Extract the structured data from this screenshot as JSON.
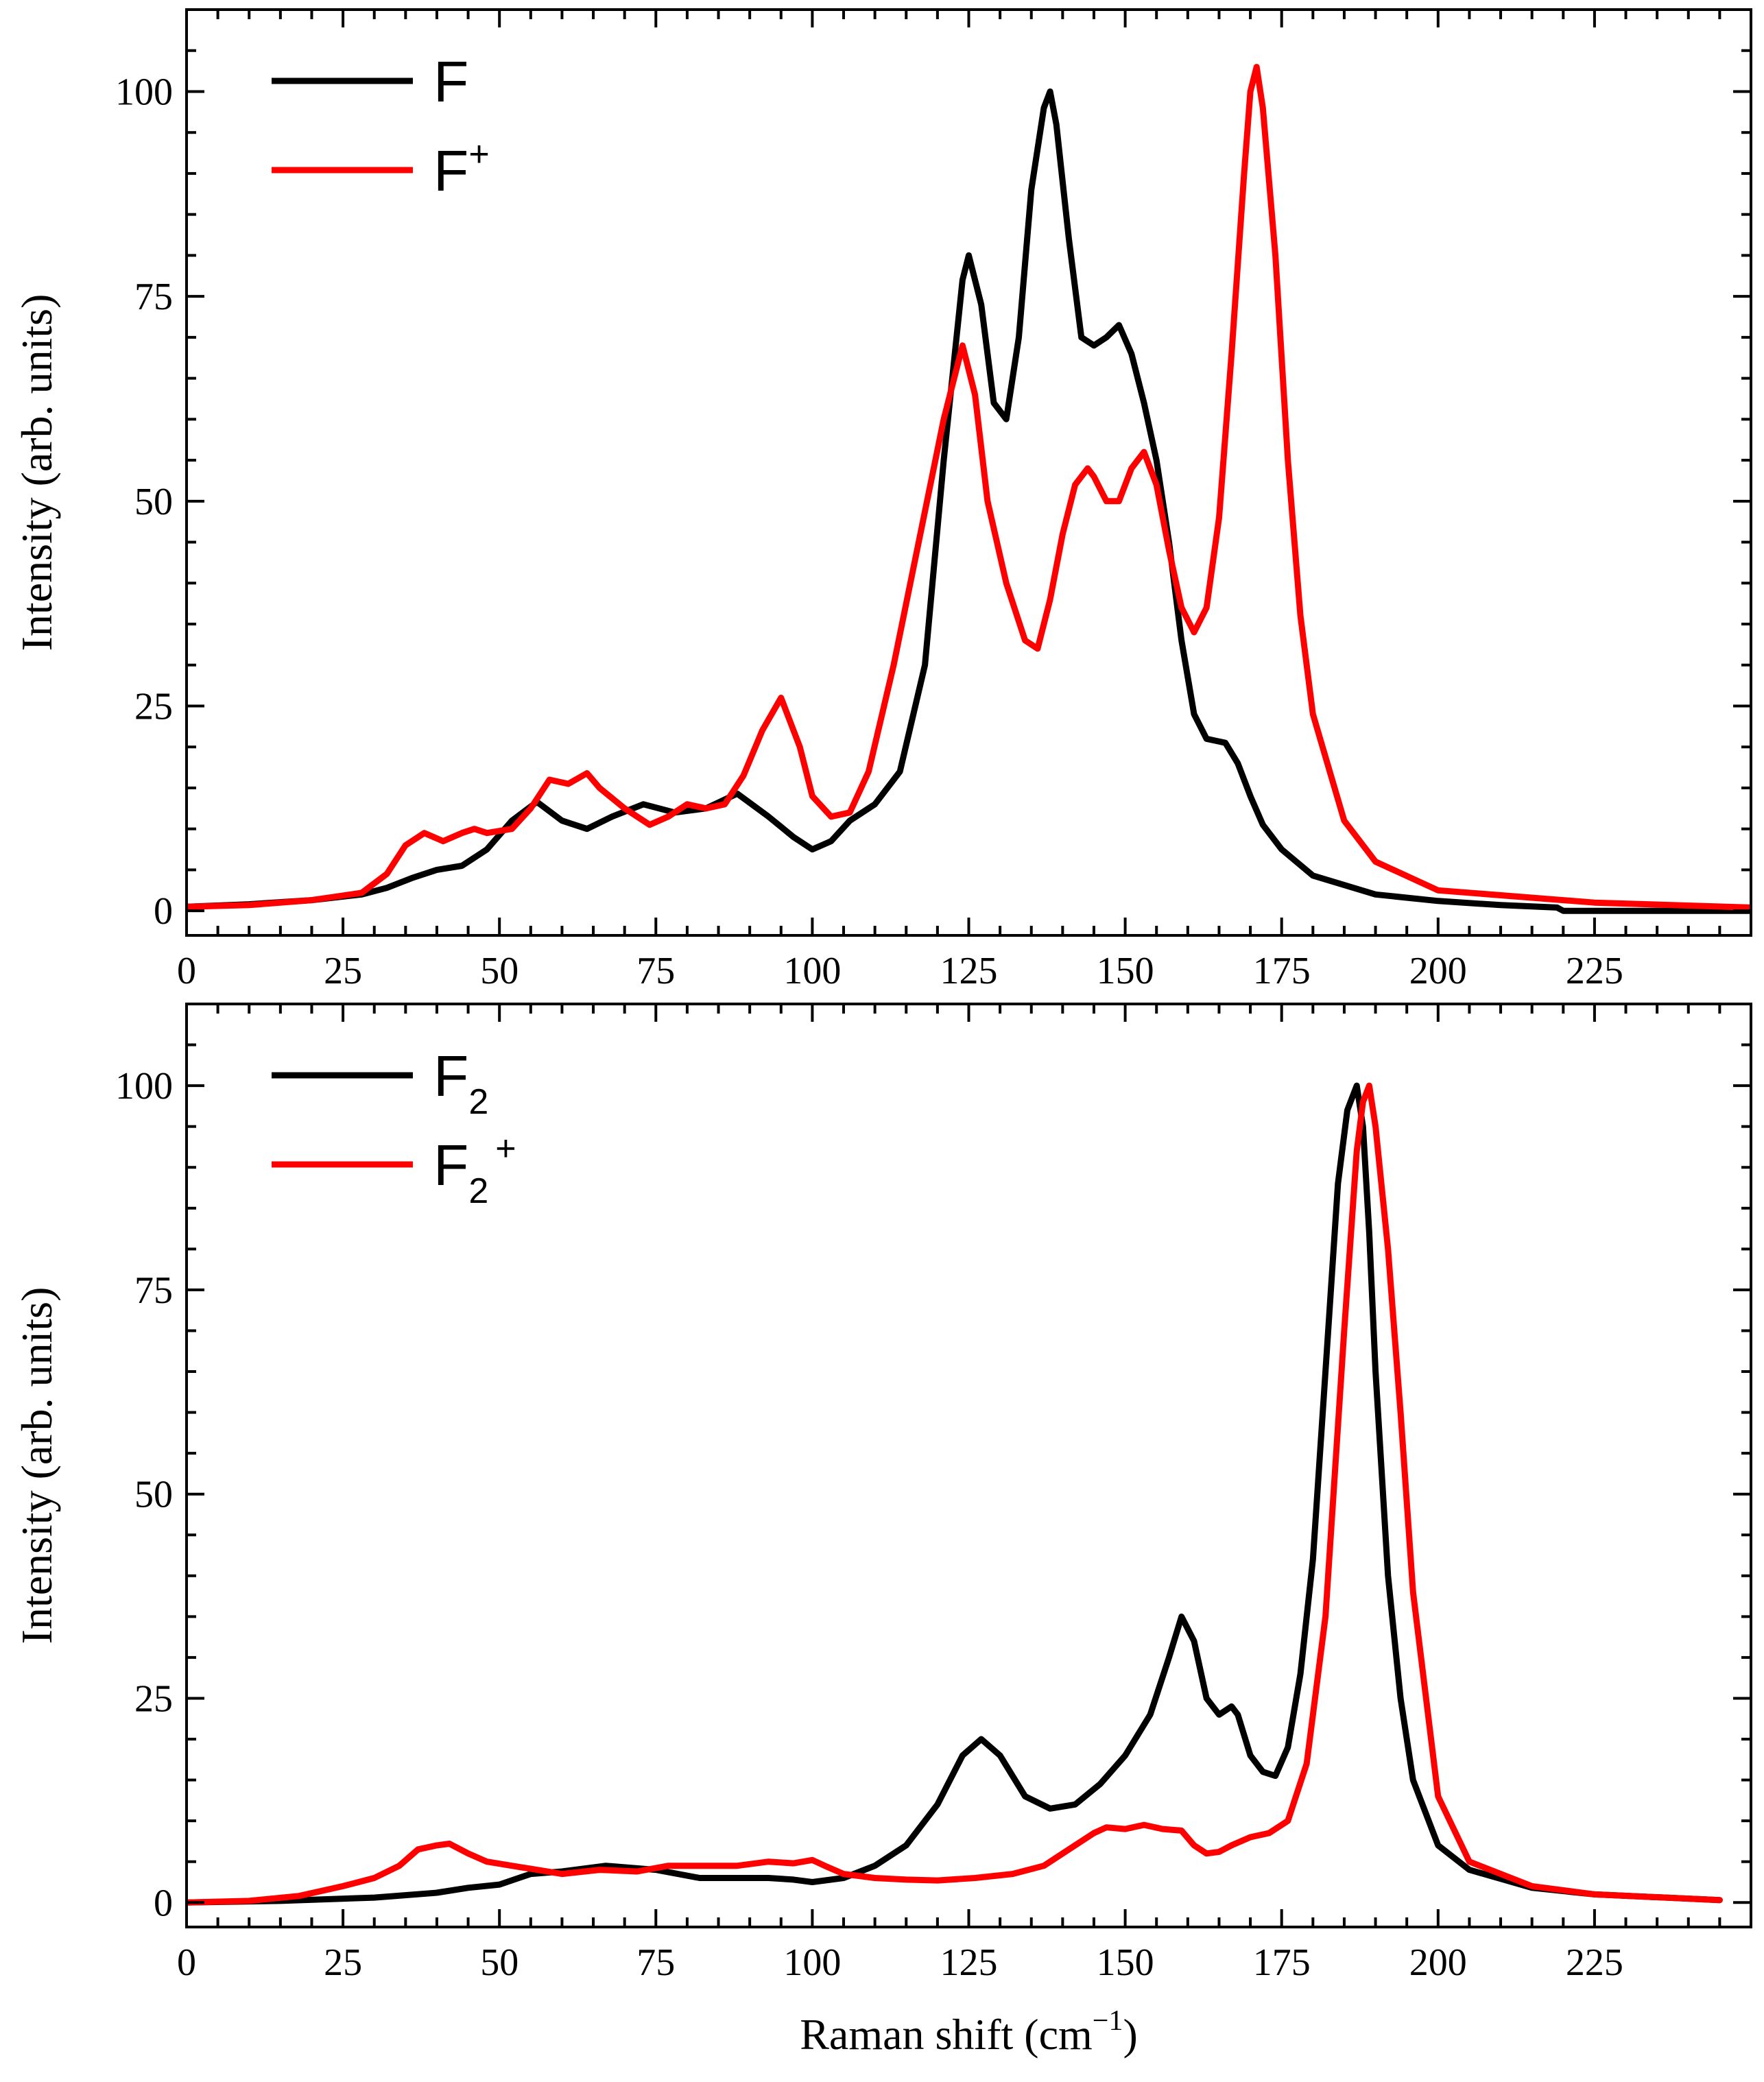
{
  "chart_data": [
    {
      "type": "line",
      "panel": "top",
      "title": "",
      "xlabel": "",
      "ylabel": "Intensity (arb. units)",
      "xlim": [
        0,
        250
      ],
      "ylim": [
        -3,
        110
      ],
      "xticks": [
        0,
        25,
        50,
        75,
        100,
        125,
        150,
        175,
        200,
        225
      ],
      "xtick_labels": [
        "0",
        "25",
        "50",
        "75",
        "100",
        "125",
        "150",
        "175",
        "200",
        "225"
      ],
      "yticks": [
        0,
        25,
        50,
        75,
        100
      ],
      "ytick_labels": [
        "0",
        "25",
        "50",
        "75",
        "100"
      ],
      "grid": false,
      "legend_position": "top-left",
      "series": [
        {
          "name": "F",
          "legend_main": "F",
          "legend_sub": "",
          "legend_sup": "",
          "color": "#000000",
          "x": [
            0,
            10,
            20,
            28,
            32,
            36,
            40,
            44,
            48,
            52,
            56,
            60,
            64,
            68,
            73,
            78,
            83,
            88,
            93,
            97,
            100,
            103,
            106,
            110,
            114,
            118,
            121,
            124,
            125,
            127,
            129,
            131,
            133,
            135,
            137,
            138,
            139,
            141,
            143,
            145,
            147,
            149,
            151,
            153,
            155,
            157,
            159,
            161,
            163,
            166,
            168,
            170,
            172,
            175,
            180,
            190,
            200,
            210,
            219,
            220,
            230,
            250
          ],
          "y": [
            0.5,
            0.8,
            1.3,
            2.0,
            2.8,
            4.0,
            5.0,
            5.5,
            7.5,
            11.0,
            13.3,
            11.0,
            10.0,
            11.5,
            13.0,
            12.0,
            12.5,
            14.3,
            11.5,
            9.0,
            7.5,
            8.5,
            11.0,
            13.0,
            17.0,
            30.0,
            55.0,
            77.0,
            80.0,
            74.0,
            62.0,
            60.0,
            70.0,
            88.0,
            98.0,
            100.0,
            96.0,
            82.0,
            70.0,
            69.0,
            70.0,
            71.5,
            68.0,
            62.0,
            55.0,
            45.0,
            33.0,
            24.0,
            21.0,
            20.5,
            18.0,
            14.0,
            10.5,
            7.5,
            4.3,
            2.0,
            1.2,
            0.7,
            0.4,
            0.0,
            0.0,
            0.0
          ]
        },
        {
          "name": "F+",
          "legend_main": "F",
          "legend_sub": "",
          "legend_sup": "+",
          "color": "#ff0000",
          "x": [
            0,
            10,
            20,
            28,
            32,
            35,
            38,
            41,
            44,
            46,
            48,
            52,
            55,
            58,
            61,
            64,
            66,
            70,
            74,
            77,
            80,
            83,
            86,
            89,
            92,
            95,
            98,
            100,
            103,
            106,
            109,
            113,
            117,
            121,
            124,
            126,
            128,
            131,
            134,
            136,
            138,
            140,
            142,
            144,
            145,
            147,
            149,
            151,
            153,
            155,
            157,
            159,
            161,
            163,
            165,
            167,
            169,
            170,
            171,
            172,
            174,
            176,
            178,
            180,
            185,
            190,
            200,
            225,
            250
          ],
          "y": [
            0.5,
            0.7,
            1.3,
            2.2,
            4.5,
            8.0,
            9.5,
            8.5,
            9.5,
            10.0,
            9.5,
            10.0,
            12.5,
            16.0,
            15.5,
            16.8,
            15.0,
            12.5,
            10.5,
            11.5,
            13.0,
            12.5,
            13.0,
            16.5,
            22.0,
            26.0,
            20.0,
            14.0,
            11.5,
            12.0,
            17.0,
            30.0,
            45.0,
            60.0,
            69.0,
            63.0,
            50.0,
            40.0,
            33.0,
            32.0,
            38.0,
            46.0,
            52.0,
            54.0,
            53.0,
            50.0,
            50.0,
            54.0,
            56.0,
            52.0,
            44.0,
            37.0,
            34.0,
            37.0,
            48.0,
            68.0,
            90.0,
            100.0,
            103.0,
            98.0,
            80.0,
            55.0,
            36.0,
            24.0,
            11.0,
            6.0,
            2.5,
            1.0,
            0.4
          ]
        }
      ]
    },
    {
      "type": "line",
      "panel": "bottom",
      "title": "",
      "xlabel": "Raman shift (cm⁻¹)",
      "xlabel_main": "Raman shift (cm",
      "xlabel_sup": "−1",
      "xlabel_end": ")",
      "ylabel": "Intensity (arb. units)",
      "xlim": [
        0,
        250
      ],
      "ylim": [
        -3,
        110
      ],
      "xticks": [
        0,
        25,
        50,
        75,
        100,
        125,
        150,
        175,
        200,
        225
      ],
      "xtick_labels": [
        "0",
        "25",
        "50",
        "75",
        "100",
        "125",
        "150",
        "175",
        "200",
        "225"
      ],
      "yticks": [
        0,
        25,
        50,
        75,
        100
      ],
      "ytick_labels": [
        "0",
        "25",
        "50",
        "75",
        "100"
      ],
      "grid": false,
      "legend_position": "top-left",
      "series": [
        {
          "name": "F2",
          "legend_main": "F",
          "legend_sub": "2",
          "legend_sup": "",
          "color": "#000000",
          "x": [
            0,
            15,
            30,
            40,
            45,
            50,
            55,
            60,
            67,
            75,
            82,
            88,
            93,
            97,
            100,
            105,
            110,
            115,
            120,
            124,
            127,
            130,
            134,
            138,
            142,
            146,
            150,
            154,
            157,
            159,
            161,
            163,
            165,
            167,
            168,
            170,
            172,
            174,
            176,
            178,
            180,
            182,
            184,
            185.5,
            187,
            188,
            189,
            190,
            192,
            194,
            196,
            200,
            205,
            215,
            225,
            245
          ],
          "y": [
            0.0,
            0.2,
            0.6,
            1.2,
            1.8,
            2.2,
            3.5,
            3.8,
            4.5,
            4.0,
            3.0,
            3.0,
            3.0,
            2.8,
            2.5,
            3.0,
            4.5,
            7.0,
            12.0,
            18.0,
            20.0,
            18.0,
            13.0,
            11.5,
            12.0,
            14.5,
            18.0,
            23.0,
            30.0,
            35.0,
            32.0,
            25.0,
            23.0,
            24.0,
            23.0,
            18.0,
            16.0,
            15.5,
            19.0,
            28.0,
            42.0,
            65.0,
            88.0,
            97.0,
            100.0,
            95.0,
            82.0,
            65.0,
            40.0,
            25.0,
            15.0,
            7.0,
            4.0,
            1.8,
            1.0,
            0.3
          ]
        },
        {
          "name": "F2+",
          "legend_main": "F",
          "legend_sub": "2",
          "legend_sup": "+",
          "color": "#ff0000",
          "x": [
            0,
            10,
            18,
            25,
            30,
            34,
            37,
            40,
            42,
            45,
            48,
            52,
            56,
            60,
            66,
            72,
            77,
            82,
            88,
            93,
            97,
            100,
            102,
            105,
            110,
            115,
            120,
            126,
            132,
            137,
            141,
            145,
            147,
            150,
            153,
            156,
            159,
            161,
            163,
            165,
            167,
            170,
            173,
            176,
            179,
            182,
            185,
            187,
            188,
            189,
            190,
            192,
            194,
            196,
            200,
            205,
            215,
            225,
            245
          ],
          "y": [
            0.0,
            0.2,
            0.8,
            2.0,
            3.0,
            4.5,
            6.5,
            7.0,
            7.2,
            6.0,
            5.0,
            4.5,
            4.0,
            3.5,
            4.0,
            3.8,
            4.5,
            4.5,
            4.5,
            5.0,
            4.8,
            5.2,
            4.5,
            3.5,
            3.0,
            2.8,
            2.7,
            3.0,
            3.5,
            4.5,
            6.5,
            8.5,
            9.2,
            9.0,
            9.5,
            9.0,
            8.8,
            7.0,
            6.0,
            6.2,
            7.0,
            8.0,
            8.5,
            10.0,
            17.0,
            35.0,
            70.0,
            92.0,
            98.0,
            100.0,
            95.0,
            80.0,
            60.0,
            38.0,
            13.0,
            5.0,
            2.0,
            1.0,
            0.3
          ]
        }
      ]
    }
  ]
}
